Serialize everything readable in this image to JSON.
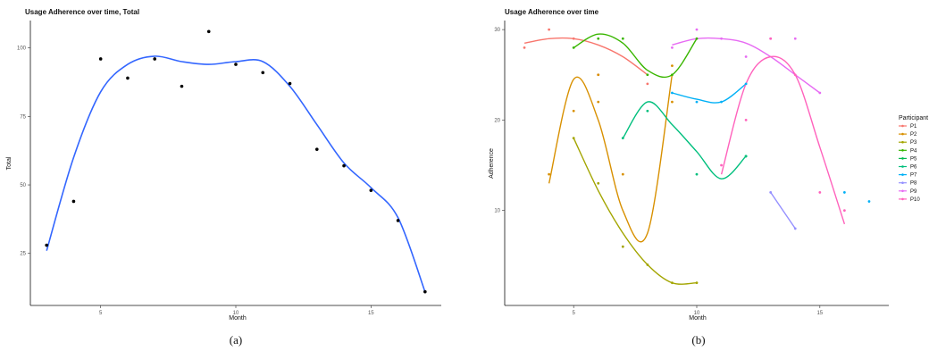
{
  "chart_data": [
    {
      "type": "scatter",
      "title": "Usage Adherence over time, Total",
      "xlabel": "Month",
      "ylabel": "Total",
      "xlim": [
        2.4,
        17.6
      ],
      "ylim": [
        6,
        110
      ],
      "xticks": [
        5,
        10,
        15
      ],
      "yticks": [
        25,
        50,
        75,
        100
      ],
      "grid": false,
      "smooth_color": "#3366ff",
      "points": [
        {
          "x": 3,
          "y": 28
        },
        {
          "x": 4,
          "y": 44
        },
        {
          "x": 5,
          "y": 96
        },
        {
          "x": 6,
          "y": 89
        },
        {
          "x": 7,
          "y": 96
        },
        {
          "x": 8,
          "y": 86
        },
        {
          "x": 9,
          "y": 106
        },
        {
          "x": 10,
          "y": 94
        },
        {
          "x": 11,
          "y": 91
        },
        {
          "x": 12,
          "y": 87
        },
        {
          "x": 13,
          "y": 63
        },
        {
          "x": 14,
          "y": 57
        },
        {
          "x": 15,
          "y": 48
        },
        {
          "x": 16,
          "y": 37
        },
        {
          "x": 17,
          "y": 11
        }
      ],
      "smooth": [
        [
          3,
          26
        ],
        [
          4,
          60
        ],
        [
          5,
          84
        ],
        [
          6,
          94
        ],
        [
          7,
          97
        ],
        [
          8,
          95
        ],
        [
          9,
          94
        ],
        [
          10,
          95
        ],
        [
          11,
          95
        ],
        [
          12,
          86
        ],
        [
          13,
          72
        ],
        [
          14,
          58
        ],
        [
          15,
          49
        ],
        [
          16,
          38
        ],
        [
          17,
          11
        ]
      ],
      "caption": "(a)"
    },
    {
      "type": "line",
      "title": "Usage Adherence over time",
      "xlabel": "Month",
      "ylabel": "Adherence",
      "xlim": [
        2.2,
        17.8
      ],
      "ylim": [
        -0.5,
        31
      ],
      "xticks": [
        5,
        10,
        15
      ],
      "yticks": [
        10,
        20,
        30
      ],
      "grid": false,
      "legend_title": "Participant",
      "legend_position": "right",
      "series": [
        {
          "name": "P1",
          "color": "#f8766d",
          "points": [
            [
              3,
              28
            ],
            [
              4,
              30
            ],
            [
              5,
              29
            ],
            [
              6,
              25
            ],
            [
              8,
              24
            ]
          ],
          "smooth": [
            [
              3,
              28.5
            ],
            [
              4,
              29
            ],
            [
              5,
              29
            ],
            [
              6,
              28.3
            ],
            [
              7,
              27
            ],
            [
              8,
              25
            ]
          ]
        },
        {
          "name": "P2",
          "color": "#d89000",
          "points": [
            [
              4,
              14
            ],
            [
              5,
              21
            ],
            [
              6,
              25
            ],
            [
              6,
              22
            ],
            [
              7,
              14
            ],
            [
              9,
              26
            ],
            [
              9,
              22
            ]
          ],
          "smooth": [
            [
              4,
              13
            ],
            [
              5,
              24.5
            ],
            [
              6,
              20
            ],
            [
              7,
              10
            ],
            [
              8,
              7.5
            ],
            [
              9,
              25
            ]
          ]
        },
        {
          "name": "P3",
          "color": "#a3a500",
          "points": [
            [
              5,
              18
            ],
            [
              6,
              13
            ],
            [
              7,
              6
            ],
            [
              8,
              4
            ],
            [
              9,
              2
            ],
            [
              10,
              2
            ]
          ],
          "smooth": [
            [
              5,
              18
            ],
            [
              6,
              12.2
            ],
            [
              7,
              7.5
            ],
            [
              8,
              4
            ],
            [
              9,
              2
            ],
            [
              10,
              2
            ]
          ]
        },
        {
          "name": "P4",
          "color": "#39b600",
          "points": [
            [
              5,
              28
            ],
            [
              6,
              29
            ],
            [
              7,
              29
            ],
            [
              8,
              25
            ],
            [
              9,
              25
            ],
            [
              10,
              29
            ]
          ],
          "smooth": [
            [
              5,
              28
            ],
            [
              6,
              29.5
            ],
            [
              7,
              28.5
            ],
            [
              8,
              25.5
            ],
            [
              9,
              25
            ],
            [
              10,
              29
            ]
          ]
        },
        {
          "name": "P5",
          "color": "#00bb4e",
          "points": [
            [
              12,
              16
            ]
          ],
          "smooth": []
        },
        {
          "name": "P6",
          "color": "#00bf7d",
          "points": [
            [
              7,
              18
            ],
            [
              8,
              21
            ],
            [
              10,
              14
            ],
            [
              12,
              16
            ]
          ],
          "smooth": [
            [
              7,
              18
            ],
            [
              8,
              22
            ],
            [
              9,
              19.5
            ],
            [
              10,
              16.5
            ],
            [
              11,
              13.5
            ],
            [
              12,
              16
            ]
          ]
        },
        {
          "name": "P7",
          "color": "#00b0f6",
          "points": [
            [
              9,
              23
            ],
            [
              10,
              22
            ],
            [
              11,
              22
            ],
            [
              12,
              24
            ],
            [
              16,
              12
            ],
            [
              17,
              11
            ]
          ],
          "smooth": [
            [
              9,
              23
            ],
            [
              10,
              22.3
            ],
            [
              11,
              22
            ],
            [
              12,
              24
            ]
          ]
        },
        {
          "name": "P8",
          "color": "#9590ff",
          "points": [
            [
              13,
              12
            ],
            [
              14,
              8
            ]
          ],
          "smooth": [
            [
              13,
              12
            ],
            [
              14,
              8
            ]
          ]
        },
        {
          "name": "P9",
          "color": "#e76bf3",
          "points": [
            [
              9,
              28
            ],
            [
              10,
              30
            ],
            [
              11,
              29
            ],
            [
              12,
              27
            ],
            [
              13,
              29
            ],
            [
              14,
              29
            ],
            [
              15,
              23
            ]
          ],
          "smooth": [
            [
              9,
              28.3
            ],
            [
              10,
              29
            ],
            [
              11,
              29
            ],
            [
              12,
              28.5
            ],
            [
              13,
              27
            ],
            [
              14,
              25
            ],
            [
              15,
              23
            ]
          ]
        },
        {
          "name": "P10",
          "color": "#ff62bc",
          "points": [
            [
              11,
              15
            ],
            [
              12,
              20
            ],
            [
              13,
              29
            ],
            [
              14,
              25
            ],
            [
              15,
              12
            ],
            [
              16,
              10
            ]
          ],
          "smooth": [
            [
              11,
              14
            ],
            [
              12,
              24
            ],
            [
              13,
              27
            ],
            [
              14,
              25
            ],
            [
              15,
              17
            ],
            [
              16,
              8.5
            ]
          ]
        }
      ],
      "caption": "(b)"
    }
  ]
}
